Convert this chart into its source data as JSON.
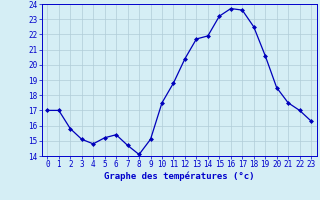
{
  "hours": [
    0,
    1,
    2,
    3,
    4,
    5,
    6,
    7,
    8,
    9,
    10,
    11,
    12,
    13,
    14,
    15,
    16,
    17,
    18,
    19,
    20,
    21,
    22,
    23
  ],
  "temperatures": [
    17.0,
    17.0,
    15.8,
    15.1,
    14.8,
    15.2,
    15.4,
    14.7,
    14.1,
    15.1,
    17.5,
    18.8,
    20.4,
    21.7,
    21.9,
    23.2,
    23.7,
    23.6,
    22.5,
    20.6,
    18.5,
    17.5,
    17.0,
    16.3
  ],
  "line_color": "#0000bb",
  "marker": "D",
  "marker_size": 2.0,
  "line_width": 0.9,
  "ylim": [
    14,
    24
  ],
  "yticks": [
    14,
    15,
    16,
    17,
    18,
    19,
    20,
    21,
    22,
    23,
    24
  ],
  "xticks": [
    0,
    1,
    2,
    3,
    4,
    5,
    6,
    7,
    8,
    9,
    10,
    11,
    12,
    13,
    14,
    15,
    16,
    17,
    18,
    19,
    20,
    21,
    22,
    23
  ],
  "xlabel": "Graphe des températures (°c)",
  "xlabel_fontsize": 6.5,
  "xlabel_color": "#0000cc",
  "xlabel_fontweight": "bold",
  "tick_color": "#0000cc",
  "tick_fontsize": 5.5,
  "bg_color": "#d5eef5",
  "grid_color": "#b0ccd8",
  "border_color": "#0000cc",
  "fig_bg": "#d5eef5"
}
